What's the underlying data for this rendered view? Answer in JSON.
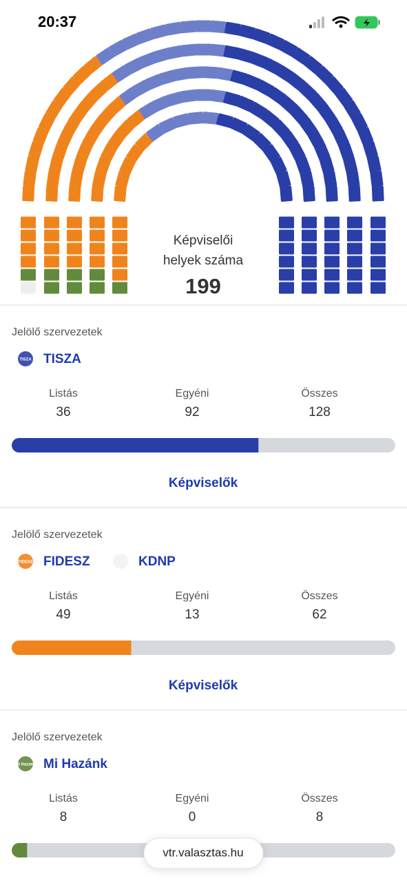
{
  "status": {
    "time": "20:37"
  },
  "summary": {
    "line1": "Képviselői",
    "line2": "helyek száma",
    "total": 199
  },
  "parties": [
    {
      "heading": "Jelölő szervezetek",
      "names": [
        {
          "name": "TISZA",
          "logo_text": "TISZA"
        }
      ],
      "color": "#2a3ea8",
      "list_color": "#6e7fca",
      "columns": [
        {
          "label": "Listás",
          "value": 36
        },
        {
          "label": "Egyéni",
          "value": 92
        },
        {
          "label": "Összes",
          "value": 128
        }
      ],
      "button": "Képviselők"
    },
    {
      "heading": "Jelölő szervezetek",
      "names": [
        {
          "name": "FIDESZ",
          "logo_text": "FIDESZ"
        },
        {
          "name": "KDNP"
        }
      ],
      "color": "#f0841c",
      "columns": [
        {
          "label": "Listás",
          "value": 49
        },
        {
          "label": "Egyéni",
          "value": 13
        },
        {
          "label": "Összes",
          "value": 62
        }
      ],
      "button": "Képviselők"
    },
    {
      "heading": "Jelölő szervezetek",
      "names": [
        {
          "name": "Mi Hazánk",
          "logo_text": "Mi Hazánk"
        }
      ],
      "color": "#628a3c",
      "columns": [
        {
          "label": "Listás",
          "value": 8
        },
        {
          "label": "Egyéni",
          "value": 0
        },
        {
          "label": "Összes",
          "value": 8
        }
      ]
    }
  ],
  "url": "vtr.valasztas.hu"
}
